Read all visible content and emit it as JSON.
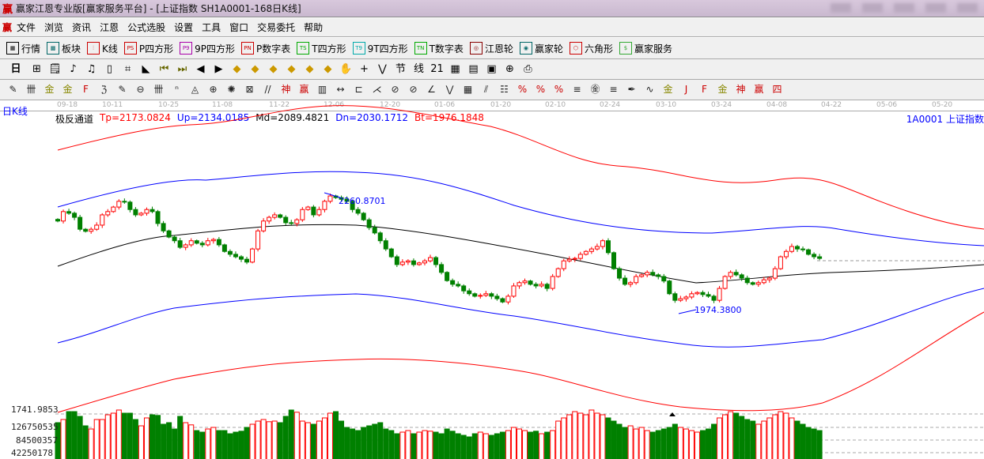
{
  "window": {
    "title": "赢家江恩专业版[赢家服务平台] - [上证指数  SH1A0001-168日K线]",
    "logo": "赢"
  },
  "menu": [
    "文件",
    "浏览",
    "资讯",
    "江恩",
    "公式选股",
    "设置",
    "工具",
    "窗口",
    "交易委托",
    "帮助"
  ],
  "toolbar1": [
    {
      "icon": "quote-table-icon",
      "glyph": "▦",
      "label": "行情"
    },
    {
      "icon": "sector-icon",
      "glyph": "▩",
      "label": "板块"
    },
    {
      "icon": "kline-icon",
      "glyph": "⫶",
      "label": "K线"
    },
    {
      "icon": "ps-icon",
      "glyph": "PS",
      "label": "P四方形"
    },
    {
      "icon": "p9-icon",
      "glyph": "P9",
      "label": "9P四方形"
    },
    {
      "icon": "pn-icon",
      "glyph": "PN",
      "label": "P数字表"
    },
    {
      "icon": "ts-icon",
      "glyph": "TS",
      "label": "T四方形"
    },
    {
      "icon": "t9-icon",
      "glyph": "T9",
      "label": "9T四方形"
    },
    {
      "icon": "tn-icon",
      "glyph": "TN",
      "label": "T数字表"
    },
    {
      "icon": "gann-wheel-icon",
      "glyph": "◎",
      "label": "江恩轮"
    },
    {
      "icon": "big-wheel-icon",
      "glyph": "◉",
      "label": "赢家轮"
    },
    {
      "icon": "hexagon-icon",
      "glyph": "⬡",
      "label": "六角形"
    },
    {
      "icon": "dollar-icon",
      "glyph": "$",
      "label": "赢家服务"
    }
  ],
  "toolbar2": {
    "period": "日",
    "icons": [
      "chart-icon",
      "notes-icon",
      "kline3-icon",
      "kline9-icon",
      "candle-icon",
      "draw-icon",
      "flag-icon",
      "first-icon",
      "last-icon",
      "prev-icon",
      "next-icon",
      "arrow-left-icon",
      "arrow-right-icon",
      "arrow-h-icon",
      "arrow-x-icon",
      "arrow-4-icon",
      "arrow-all-icon",
      "hand-icon",
      "crosshair-icon",
      "line-tool-icon",
      "section-icon",
      "loop-icon",
      "calendar-icon",
      "calculator-icon",
      "book-icon",
      "save-icon",
      "network-icon",
      "print-icon"
    ],
    "glyphs": [
      "⊞",
      "🗒",
      "♪",
      "♫",
      "▯",
      "⌗",
      "◣",
      "⏮",
      "⏭",
      "◀",
      "▶",
      "◆",
      "◆",
      "◆",
      "◆",
      "◆",
      "◆",
      "✋",
      "+",
      "⋁",
      "节",
      "线",
      "21",
      "▦",
      "▤",
      "▣",
      "⊕",
      "⎙"
    ]
  },
  "toolbar3": {
    "glyphs": [
      "✎",
      "卌",
      "金",
      "金",
      "F",
      "ℨ",
      "✎",
      "⊖",
      "卌",
      "ⁿ",
      "◬",
      "⊕",
      "✺",
      "⊠",
      "//",
      "神",
      "赢",
      "▥",
      "↔",
      "⊏",
      "⋌",
      "⊘",
      "⊘",
      "∠",
      "⋁",
      "▦",
      "⫽",
      "☷",
      "%",
      "%",
      "%",
      "≡",
      "㊎",
      "≡",
      "✒",
      "∿",
      "金",
      "J",
      "F",
      "金",
      "神",
      "赢",
      "四"
    ]
  },
  "chart": {
    "period_label": "日K线",
    "indicator_name": "极反通道",
    "params": [
      {
        "text": "Tp=2173.0824",
        "color": "#ff0000"
      },
      {
        "text": "Up=2134.0185",
        "color": "#0000ff"
      },
      {
        "text": "Md=2089.4821",
        "color": "#000000"
      },
      {
        "text": "Dn=2030.1712",
        "color": "#0000ff"
      },
      {
        "text": "Bt=1976.1848",
        "color": "#ff0000"
      }
    ],
    "code_label": "1A0001  上证指数",
    "dates": [
      "09-18",
      "10-11",
      "10-25",
      "11-08",
      "11-22",
      "12-06",
      "12-20",
      "01-06",
      "01-20",
      "02-10",
      "02-24",
      "03-10",
      "03-24",
      "04-08",
      "04-22",
      "05-06",
      "05-20"
    ],
    "high_label": "2260.8701",
    "low_label": "1974.3800",
    "price_label": "1741.9853",
    "volume_labels": [
      "126750535",
      "84500357",
      "42250178"
    ],
    "up_color": "#ff0000",
    "down_color": "#008000"
  },
  "chart_data": {
    "type": "candlestick",
    "closes": [
      2196,
      2219,
      2215,
      2205,
      2176,
      2171,
      2176,
      2186,
      2211,
      2219,
      2230,
      2244,
      2242,
      2224,
      2211,
      2215,
      2224,
      2219,
      2190,
      2172,
      2157,
      2148,
      2132,
      2138,
      2148,
      2142,
      2138,
      2148,
      2151,
      2138,
      2122,
      2115,
      2109,
      2103,
      2096,
      2128,
      2172,
      2196,
      2205,
      2211,
      2205,
      2192,
      2190,
      2199,
      2224,
      2230,
      2211,
      2224,
      2244,
      2257,
      2253,
      2249,
      2244,
      2224,
      2215,
      2199,
      2180,
      2167,
      2148,
      2128,
      2109,
      2090,
      2096,
      2099,
      2090,
      2094,
      2099,
      2107,
      2090,
      2071,
      2051,
      2042,
      2038,
      2026,
      2019,
      2013,
      2015,
      2019,
      2013,
      2007,
      1999,
      2013,
      2038,
      2046,
      2050,
      2042,
      2038,
      2042,
      2032,
      2061,
      2080,
      2099,
      2103,
      2105,
      2115,
      2122,
      2128,
      2134,
      2148,
      2119,
      2080,
      2057,
      2042,
      2046,
      2061,
      2065,
      2071,
      2065,
      2061,
      2050,
      2019,
      2003,
      2007,
      2011,
      2019,
      2022,
      2017,
      2013,
      2003,
      2032,
      2061,
      2071,
      2065,
      2057,
      2046,
      2042,
      2046,
      2053,
      2057,
      2080,
      2109,
      2122,
      2134,
      2128,
      2126,
      2115,
      2109,
      2105
    ],
    "volumes_millions": [
      115,
      125,
      150,
      150,
      135,
      105,
      95,
      125,
      125,
      140,
      145,
      155,
      145,
      145,
      125,
      105,
      130,
      140,
      138,
      110,
      115,
      95,
      135,
      115,
      108,
      90,
      85,
      95,
      100,
      90,
      90,
      80,
      85,
      88,
      100,
      110,
      120,
      125,
      118,
      120,
      115,
      135,
      155,
      148,
      120,
      115,
      110,
      120,
      130,
      145,
      150,
      120,
      100,
      95,
      90,
      100,
      105,
      110,
      115,
      95,
      90,
      80,
      85,
      90,
      80,
      85,
      90,
      88,
      85,
      80,
      95,
      88,
      80,
      75,
      70,
      80,
      85,
      80,
      75,
      80,
      85,
      90,
      100,
      95,
      90,
      85,
      88,
      80,
      85,
      90,
      120,
      130,
      140,
      150,
      145,
      140,
      155,
      145,
      140,
      130,
      120,
      110,
      100,
      105,
      95,
      100,
      90,
      85,
      90,
      95,
      100,
      110,
      100,
      95,
      90,
      85,
      90,
      95,
      110,
      130,
      140,
      150,
      145,
      135,
      125,
      120,
      110,
      120,
      130,
      140,
      150,
      145,
      130,
      120,
      110,
      100,
      95,
      90
    ]
  }
}
